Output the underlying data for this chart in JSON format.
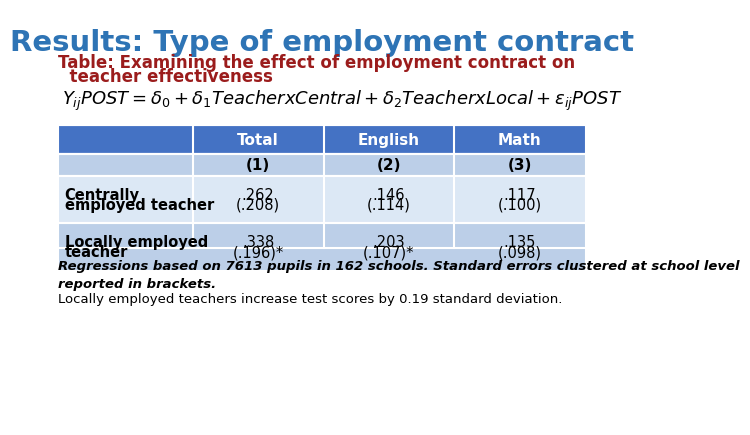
{
  "title": "Results: Type of employment contract",
  "title_color": "#2E74B5",
  "subtitle_line1": "Table: Examining the effect of employment contract on",
  "subtitle_line2": "  teacher effectiveness",
  "subtitle_color": "#9B1C1C",
  "formula": "$Y_{ij}POST = \\delta_0 + \\delta_1TeacherxCentral + \\delta_2TeacherxLocal + \\varepsilon_{ij}POST$",
  "table_header_bg": "#4472C4",
  "table_header_text": "#FFFFFF",
  "table_row_alt1_bg": "#BCCFE8",
  "table_row_alt2_bg": "#DCE8F5",
  "table_col_headers": [
    "",
    "Total",
    "English",
    "Math"
  ],
  "table_col_subheaders": [
    "",
    "(1)",
    "(2)",
    "(3)"
  ],
  "table_data": [
    [
      [
        "Centrally",
        "employed teacher"
      ],
      [
        ".262",
        "(.208)"
      ],
      [
        ".146",
        "(.114)"
      ],
      [
        ".117",
        "(.100)"
      ]
    ],
    [
      [
        "Locally employed",
        "teacher"
      ],
      [
        ".338",
        "(.196)*"
      ],
      [
        ".203",
        "(.107)*"
      ],
      [
        ".135",
        "(.098)"
      ]
    ]
  ],
  "footnote_italic": "Regressions based on 7613 pupils in 162 schools. Standard errors clustered at school level\nreported in brackets.",
  "footnote_normal": "Locally employed teachers increase test scores by 0.19 standard deviation.",
  "background_color": "#FFFFFF"
}
